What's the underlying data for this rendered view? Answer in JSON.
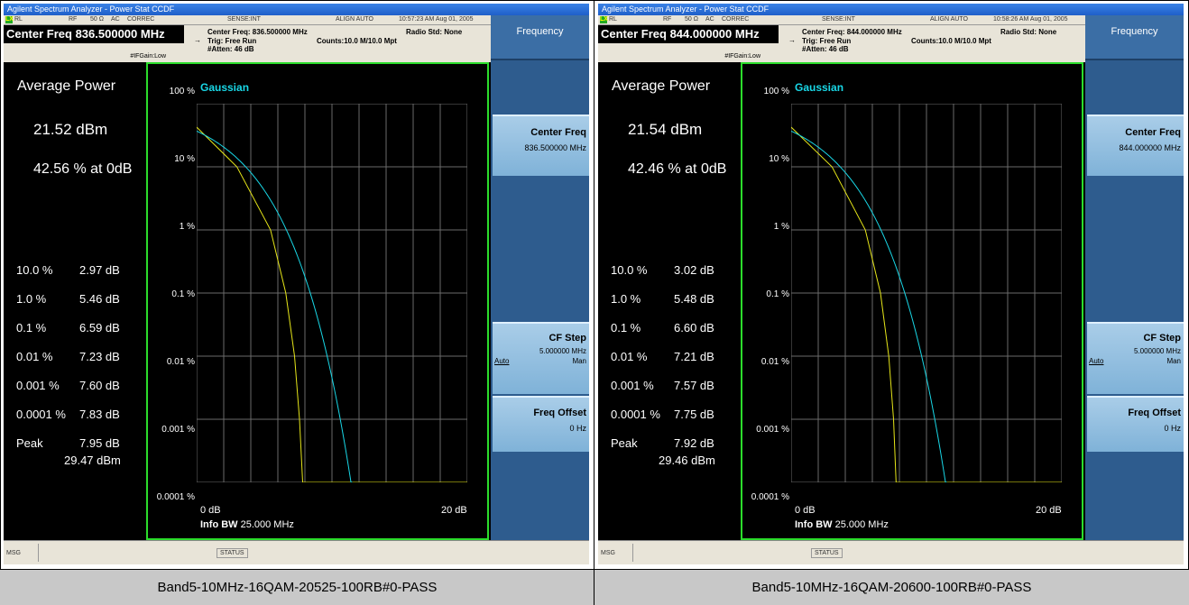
{
  "panels": [
    {
      "title": "Agilent Spectrum Analyzer - Power Stat CCDF",
      "status": {
        "rl": "RL",
        "rf": "RF",
        "ohm": "50 Ω",
        "ac": "AC",
        "correc": "CORREC",
        "sense": "SENSE:INT",
        "align": "ALIGN AUTO",
        "timestamp": "10:57:23 AM Aug 01, 2005"
      },
      "center_freq_box": "Center Freq 836.500000 MHz",
      "info": {
        "center_freq": "Center Freq: 836.500000 MHz",
        "trig": "Trig: Free Run",
        "atten": "#Atten: 46 dB",
        "radio_std": "Radio Std: None",
        "counts": "Counts:10.0 M/10.0 Mpt",
        "ifgain": "#IFGain:Low"
      },
      "softkeys": {
        "menu_title": "Frequency",
        "center_freq_label": "Center Freq",
        "center_freq_value": "836.500000 MHz",
        "cf_step_label": "CF Step",
        "cf_step_value": "5.000000 MHz",
        "auto": "Auto",
        "man": "Man",
        "freq_offset_label": "Freq Offset",
        "freq_offset_value": "0 Hz"
      },
      "measurement": {
        "avg_label": "Average Power",
        "avg_dbm": "21.52 dBm",
        "pct_at_0db": "42.56 % at 0dB",
        "rows": [
          {
            "pct": "10.0 %",
            "db": "2.97 dB"
          },
          {
            "pct": "1.0 %",
            "db": "5.46 dB"
          },
          {
            "pct": "0.1 %",
            "db": "6.59 dB"
          },
          {
            "pct": "0.01 %",
            "db": "7.23 dB"
          },
          {
            "pct": "0.001 %",
            "db": "7.60 dB"
          },
          {
            "pct": "0.0001 %",
            "db": "7.83 dB"
          },
          {
            "pct": "Peak",
            "db": "7.95 dB"
          }
        ],
        "peak_dbm": "29.47 dBm"
      },
      "chart": {
        "gaussian_label": "Gaussian",
        "y_ticks": [
          "100 %",
          "10 %",
          "1 %",
          "0.1 %",
          "0.01 %",
          "0.001 %",
          "0.0001 %"
        ],
        "x_left": "0 dB",
        "x_right": "20 dB",
        "info_bw_label": "Info BW",
        "info_bw_value": "25.000 MHz"
      },
      "msg_label": "MSG",
      "status_label": "STATUS",
      "caption": "Band5-10MHz-16QAM-20525-100RB#0-PASS"
    },
    {
      "title": "Agilent Spectrum Analyzer - Power Stat CCDF",
      "status": {
        "rl": "RL",
        "rf": "RF",
        "ohm": "50 Ω",
        "ac": "AC",
        "correc": "CORREC",
        "sense": "SENSE:INT",
        "align": "ALIGN AUTO",
        "timestamp": "10:58:26 AM Aug 01, 2005"
      },
      "center_freq_box": "Center Freq 844.000000 MHz",
      "info": {
        "center_freq": "Center Freq: 844.000000 MHz",
        "trig": "Trig: Free Run",
        "atten": "#Atten: 46 dB",
        "radio_std": "Radio Std: None",
        "counts": "Counts:10.0 M/10.0 Mpt",
        "ifgain": "#IFGain:Low"
      },
      "softkeys": {
        "menu_title": "Frequency",
        "center_freq_label": "Center Freq",
        "center_freq_value": "844.000000 MHz",
        "cf_step_label": "CF Step",
        "cf_step_value": "5.000000 MHz",
        "auto": "Auto",
        "man": "Man",
        "freq_offset_label": "Freq Offset",
        "freq_offset_value": "0 Hz"
      },
      "measurement": {
        "avg_label": "Average Power",
        "avg_dbm": "21.54 dBm",
        "pct_at_0db": "42.46 % at 0dB",
        "rows": [
          {
            "pct": "10.0 %",
            "db": "3.02 dB"
          },
          {
            "pct": "1.0 %",
            "db": "5.48 dB"
          },
          {
            "pct": "0.1 %",
            "db": "6.60 dB"
          },
          {
            "pct": "0.01 %",
            "db": "7.21 dB"
          },
          {
            "pct": "0.001 %",
            "db": "7.57 dB"
          },
          {
            "pct": "0.0001 %",
            "db": "7.75 dB"
          },
          {
            "pct": "Peak",
            "db": "7.92 dB"
          }
        ],
        "peak_dbm": "29.46 dBm"
      },
      "chart": {
        "gaussian_label": "Gaussian",
        "y_ticks": [
          "100 %",
          "10 %",
          "1 %",
          "0.1 %",
          "0.01 %",
          "0.001 %",
          "0.0001 %"
        ],
        "x_left": "0 dB",
        "x_right": "20 dB",
        "info_bw_label": "Info BW",
        "info_bw_value": "25.000 MHz"
      },
      "msg_label": "MSG",
      "status_label": "STATUS",
      "caption": "Band5-10MHz-16QAM-20600-100RB#0-PASS"
    }
  ],
  "colors": {
    "grid_line": "#6a6a6a",
    "gaussian_trace": "#19d7e6",
    "measured_trace": "#e6e619",
    "frame_border": "#2bdc2b"
  }
}
